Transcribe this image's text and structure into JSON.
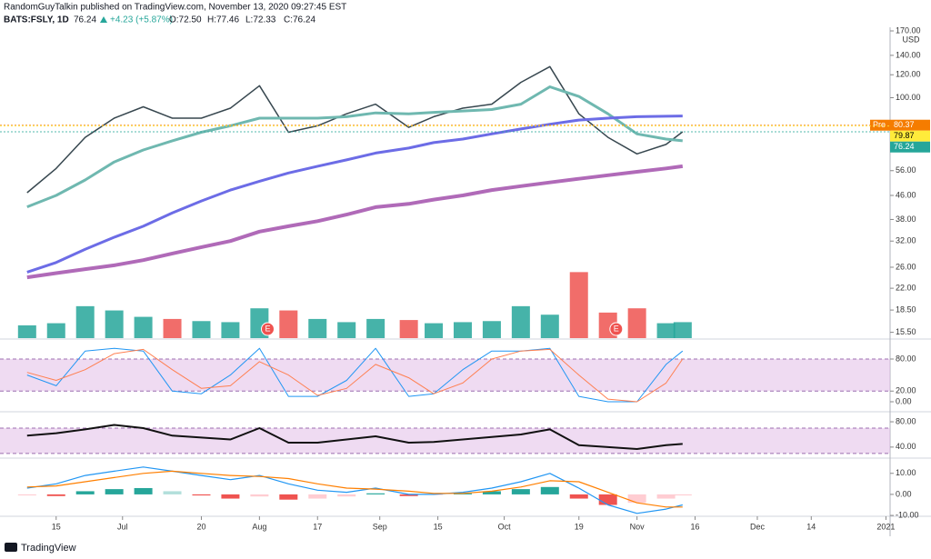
{
  "header": {
    "title": "RandomGuyTalkin published on TradingView.com, November 13, 2020 09:27:45 EST",
    "symbol": "BATS:FSLY, 1D",
    "last": "76.24",
    "change": "+4.23 (+5.87%)",
    "ohlc": [
      "O:72.50",
      "H:77.46",
      "L:72.33",
      "C:76.24"
    ],
    "footer": "TradingView"
  },
  "chart_data": [
    {
      "type": "line",
      "log_scale": true,
      "currency": "USD",
      "xlim": [
        "2020-06-03",
        "2021-01-02"
      ],
      "xticks": [
        {
          "value": "2020-06-15",
          "label": "15"
        },
        {
          "value": "2020-07-01",
          "label": "Jul"
        },
        {
          "value": "2020-07-20",
          "label": "20"
        },
        {
          "value": "2020-08-03",
          "label": "Aug"
        },
        {
          "value": "2020-08-17",
          "label": "17"
        },
        {
          "value": "2020-09-01",
          "label": "Sep"
        },
        {
          "value": "2020-09-15",
          "label": "15"
        },
        {
          "value": "2020-10-01",
          "label": "Oct"
        },
        {
          "value": "2020-10-19",
          "label": "19"
        },
        {
          "value": "2020-11-02",
          "label": "Nov"
        },
        {
          "value": "2020-11-16",
          "label": "16"
        },
        {
          "value": "2020-12-01",
          "label": "Dec"
        },
        {
          "value": "2020-12-14",
          "label": "14"
        },
        {
          "value": "2021-01-01",
          "label": "2021"
        }
      ],
      "ylim": [
        14.8,
        175
      ],
      "yticks": [
        {
          "value": 170,
          "label": "170.00"
        },
        {
          "value": 140,
          "label": "140.00"
        },
        {
          "value": 120,
          "label": "120.00"
        },
        {
          "value": 100,
          "label": "100.00"
        },
        {
          "value": 56,
          "label": "56.00"
        },
        {
          "value": 46,
          "label": "46.00"
        },
        {
          "value": 38,
          "label": "38.00"
        },
        {
          "value": 32,
          "label": "32.00"
        },
        {
          "value": 26,
          "label": "26.00"
        },
        {
          "value": 22,
          "label": "22.00"
        },
        {
          "value": 18.5,
          "label": "18.50"
        },
        {
          "value": 15.5,
          "label": "15.50"
        }
      ],
      "x": [
        "2020-06-08",
        "2020-06-15",
        "2020-06-22",
        "2020-06-29",
        "2020-07-06",
        "2020-07-13",
        "2020-07-20",
        "2020-07-27",
        "2020-08-03",
        "2020-08-10",
        "2020-08-17",
        "2020-08-24",
        "2020-08-31",
        "2020-09-08",
        "2020-09-14",
        "2020-09-21",
        "2020-09-28",
        "2020-10-05",
        "2020-10-12",
        "2020-10-19",
        "2020-10-26",
        "2020-11-02",
        "2020-11-09",
        "2020-11-13"
      ],
      "series": [
        {
          "color": "#37474f",
          "width": 1.5,
          "values": [
            47,
            57,
            73,
            85,
            93,
            85,
            85,
            92,
            110,
            76,
            80,
            88,
            95,
            79,
            86,
            92,
            95,
            113,
            128,
            88,
            73,
            64,
            69,
            76.24
          ]
        },
        {
          "color": "#6fb8b0",
          "width": 3,
          "values": [
            42,
            46,
            52,
            60,
            66,
            71,
            76,
            80,
            85,
            85,
            85,
            86,
            88.6,
            88,
            89,
            90,
            91,
            95,
            109,
            101,
            88,
            75,
            72,
            71
          ]
        },
        {
          "color": "#6c6ce6",
          "width": 3,
          "values": [
            25,
            27,
            30,
            33,
            36,
            40,
            44,
            48,
            51.5,
            55,
            58,
            61,
            64.4,
            67,
            70,
            72,
            75,
            78,
            81,
            83.7,
            85,
            86,
            86.3,
            86.5
          ]
        },
        {
          "color": "#b06ab8",
          "width": 4,
          "values": [
            24,
            24.8,
            25.6,
            26.4,
            27.5,
            29,
            30.5,
            32,
            34.5,
            36,
            37.5,
            39.5,
            41.9,
            43,
            44.5,
            46,
            48,
            49.5,
            51,
            52.5,
            54,
            55.5,
            57,
            58
          ]
        }
      ],
      "price_labels": [
        {
          "tag": "Pre",
          "value": 80.37,
          "label": "80.37",
          "color": "#f57c00",
          "text_color": "#ffffff"
        },
        {
          "value": 79.87,
          "label": "79.87",
          "color": "#ffeb3b",
          "text_color": "#000000"
        },
        {
          "value": 76.24,
          "label": "76.24",
          "color": "#26a69a",
          "text_color": "#ffffff"
        }
      ],
      "annotations": [
        {
          "x": "2020-08-05",
          "text": "E"
        },
        {
          "x": "2020-10-28",
          "text": "E"
        }
      ]
    },
    {
      "type": "bar",
      "ylim": [
        0,
        70
      ],
      "up_color": "#26a69a",
      "down_color": "#ef5350",
      "values": [
        12,
        14,
        30,
        26,
        20,
        18,
        16,
        15,
        28,
        26,
        18,
        15,
        18,
        17,
        14,
        15,
        16,
        30,
        22,
        62,
        24,
        28,
        14,
        15
      ]
    },
    {
      "type": "line",
      "ylim": [
        -17,
        114
      ],
      "band": [
        20,
        80
      ],
      "yticks": [
        {
          "value": 80,
          "label": "80.00"
        },
        {
          "value": 20,
          "label": "20.00"
        },
        {
          "value": 0,
          "label": "0.00"
        }
      ],
      "series": [
        {
          "color": "#2196f3",
          "width": 1,
          "values": [
            50,
            30,
            95,
            100,
            95,
            20,
            15,
            50,
            100,
            10,
            10,
            40,
            100,
            10,
            15,
            60,
            95,
            95,
            100,
            10,
            0,
            0,
            70,
            95
          ]
        },
        {
          "color": "#ff7f50",
          "width": 1,
          "values": [
            55,
            40,
            60,
            90,
            98,
            60,
            25,
            30,
            75,
            50,
            12,
            25,
            70,
            45,
            15,
            35,
            80,
            95,
            98,
            50,
            5,
            0,
            35,
            80
          ]
        }
      ]
    },
    {
      "type": "line",
      "ylim": [
        24,
        93
      ],
      "band": [
        30,
        70
      ],
      "yticks": [
        {
          "value": 80,
          "label": "80.00"
        },
        {
          "value": 40,
          "label": "40.00"
        }
      ],
      "series": [
        {
          "color": "#111111",
          "width": 2,
          "values": [
            58,
            62,
            68,
            75,
            70,
            58,
            55,
            52,
            70,
            47,
            47,
            52,
            57,
            47,
            48,
            52,
            56,
            60,
            68,
            43,
            40,
            37,
            43,
            45
          ]
        }
      ]
    },
    {
      "type": "macd",
      "ylim": [
        -10.4,
        16.8
      ],
      "yticks": [
        {
          "value": 10,
          "label": "10.00"
        },
        {
          "value": 0,
          "label": "0.00"
        },
        {
          "value": -10,
          "label": "-10.00"
        }
      ],
      "histogram": [
        -0.5,
        -0.8,
        1.5,
        2.5,
        3,
        1.5,
        -0.5,
        -2,
        -1,
        -2.5,
        -2,
        -1,
        0.5,
        -0.8,
        -0.3,
        0.5,
        1.5,
        2.5,
        3.5,
        -2,
        -5,
        -4,
        -2,
        -0.5
      ],
      "series": [
        {
          "color": "#2196f3",
          "width": 1.2,
          "values": [
            3,
            5,
            9,
            11,
            13,
            11,
            9,
            7,
            9,
            5,
            2,
            1,
            3,
            0,
            0,
            1,
            3,
            6,
            10,
            3,
            -5,
            -9,
            -7,
            -5
          ]
        },
        {
          "color": "#ff7f00",
          "width": 1.2,
          "values": [
            3.5,
            4,
            6,
            8,
            10,
            11,
            10,
            9,
            8.5,
            7.5,
            5,
            3,
            2.5,
            1.5,
            0.5,
            0.5,
            1.5,
            3.5,
            6.5,
            6,
            1,
            -4,
            -6,
            -6
          ]
        }
      ]
    }
  ]
}
